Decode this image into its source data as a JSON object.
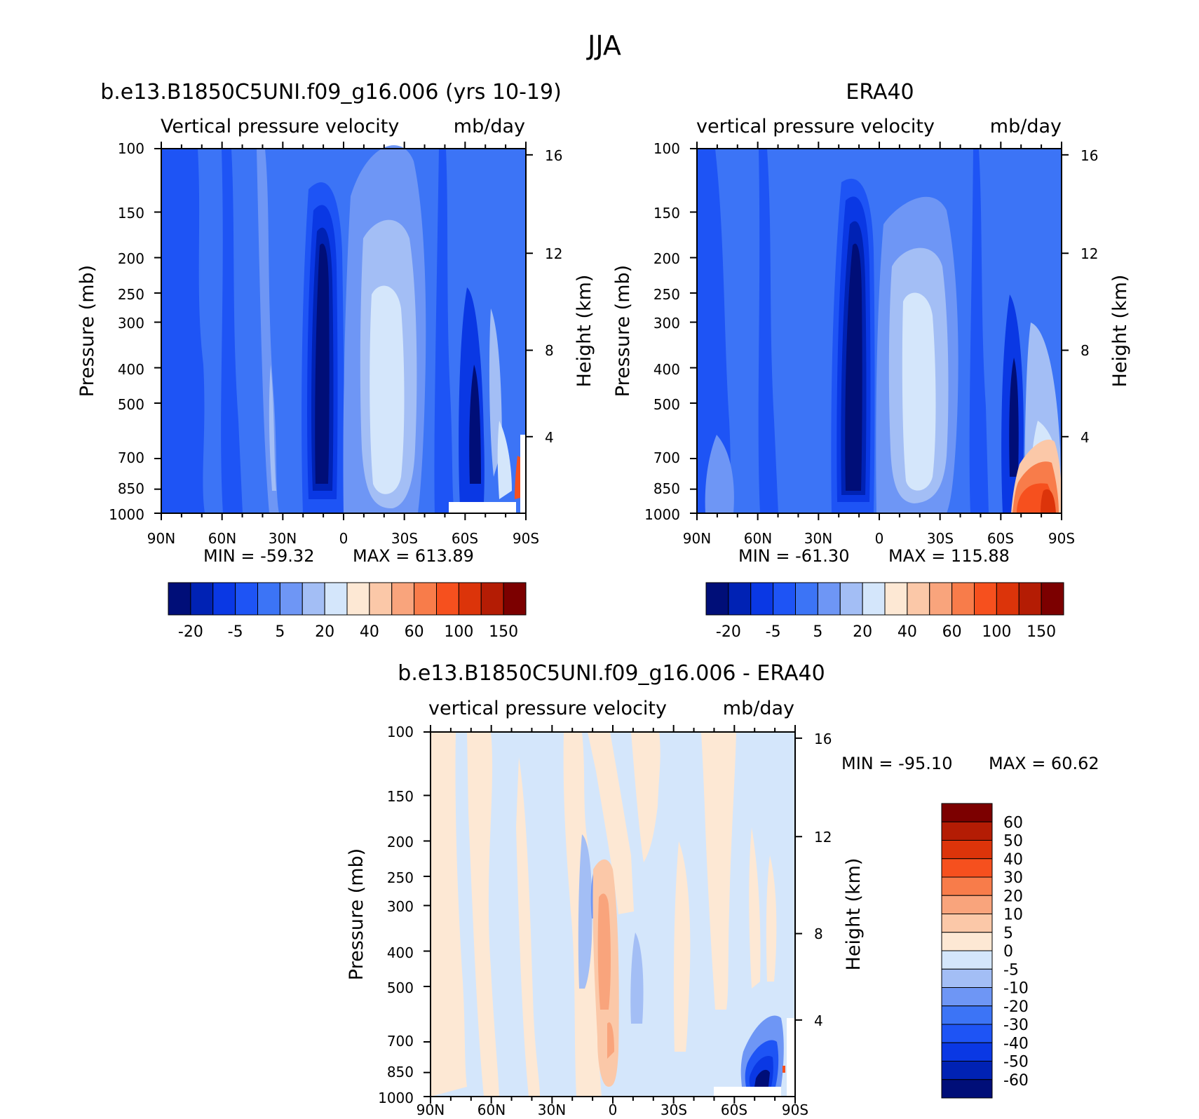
{
  "figure": {
    "title": "JJA"
  },
  "chart_data": [
    {
      "type": "heatmap",
      "title": "b.e13.B1850C5UNI.f09_g16.006 (yrs 10-19)",
      "subtitle_left": "Vertical pressure velocity",
      "subtitle_right": "mb/day",
      "xlabel": "",
      "ylabel": "Pressure (mb)",
      "ylabel_right": "Height (km)",
      "x_ticks": [
        "90N",
        "60N",
        "30N",
        "0",
        "30S",
        "60S",
        "90S"
      ],
      "y_ticks": [
        "100",
        "150",
        "200",
        "250",
        "300",
        "400",
        "500",
        "700",
        "850",
        "1000"
      ],
      "y_ticks_right": [
        "16",
        "12",
        "8",
        "4"
      ],
      "min_label": "MIN = -59.32",
      "max_label": "MAX = 613.89",
      "colorbar": {
        "levels": [
          "-20",
          "-5",
          "5",
          "20",
          "40",
          "60",
          "100",
          "150"
        ],
        "colors": [
          "#000e78",
          "#0022b4",
          "#0a38e4",
          "#1e54f5",
          "#3c74f6",
          "#6e96f5",
          "#a3bef5",
          "#d4e6fb",
          "#fde8d4",
          "#fbc8a8",
          "#f9a47c",
          "#f87c4a",
          "#f6501e",
          "#dc340a",
          "#b41c04",
          "#7c0000"
        ]
      }
    },
    {
      "type": "heatmap",
      "title": "ERA40",
      "subtitle_left": "vertical pressure velocity",
      "subtitle_right": "mb/day",
      "xlabel": "",
      "ylabel": "Pressure (mb)",
      "ylabel_right": "Height (km)",
      "x_ticks": [
        "90N",
        "60N",
        "30N",
        "0",
        "30S",
        "60S",
        "90S"
      ],
      "y_ticks": [
        "100",
        "150",
        "200",
        "250",
        "300",
        "400",
        "500",
        "700",
        "850",
        "1000"
      ],
      "y_ticks_right": [
        "16",
        "12",
        "8",
        "4"
      ],
      "min_label": "MIN = -61.30",
      "max_label": "MAX = 115.88",
      "colorbar": {
        "levels": [
          "-20",
          "-5",
          "5",
          "20",
          "40",
          "60",
          "100",
          "150"
        ],
        "colors": [
          "#000e78",
          "#0022b4",
          "#0a38e4",
          "#1e54f5",
          "#3c74f6",
          "#6e96f5",
          "#a3bef5",
          "#d4e6fb",
          "#fde8d4",
          "#fbc8a8",
          "#f9a47c",
          "#f87c4a",
          "#f6501e",
          "#dc340a",
          "#b41c04",
          "#7c0000"
        ]
      }
    },
    {
      "type": "heatmap",
      "title": "b.e13.B1850C5UNI.f09_g16.006 - ERA40",
      "subtitle_left": "vertical pressure velocity",
      "subtitle_right": "mb/day",
      "xlabel": "",
      "ylabel": "Pressure (mb)",
      "ylabel_right": "Height (km)",
      "x_ticks": [
        "90N",
        "60N",
        "30N",
        "0",
        "30S",
        "60S",
        "90S"
      ],
      "y_ticks": [
        "100",
        "150",
        "200",
        "250",
        "300",
        "400",
        "500",
        "700",
        "850",
        "1000"
      ],
      "y_ticks_right": [
        "16",
        "12",
        "8",
        "4"
      ],
      "min_label": "MIN = -95.10",
      "max_label": "MAX = 60.62",
      "colorbar": {
        "orientation": "vertical",
        "levels": [
          "60",
          "50",
          "40",
          "30",
          "20",
          "10",
          "5",
          "0",
          "-5",
          "-10",
          "-20",
          "-30",
          "-40",
          "-50",
          "-60"
        ],
        "colors": [
          "#7c0000",
          "#b41c04",
          "#dc340a",
          "#f6501e",
          "#f87c4a",
          "#f9a47c",
          "#fbc8a8",
          "#fde8d4",
          "#d4e6fb",
          "#a3bef5",
          "#6e96f5",
          "#3c74f6",
          "#1e54f5",
          "#0a38e4",
          "#0022b4",
          "#000e78"
        ]
      }
    }
  ]
}
